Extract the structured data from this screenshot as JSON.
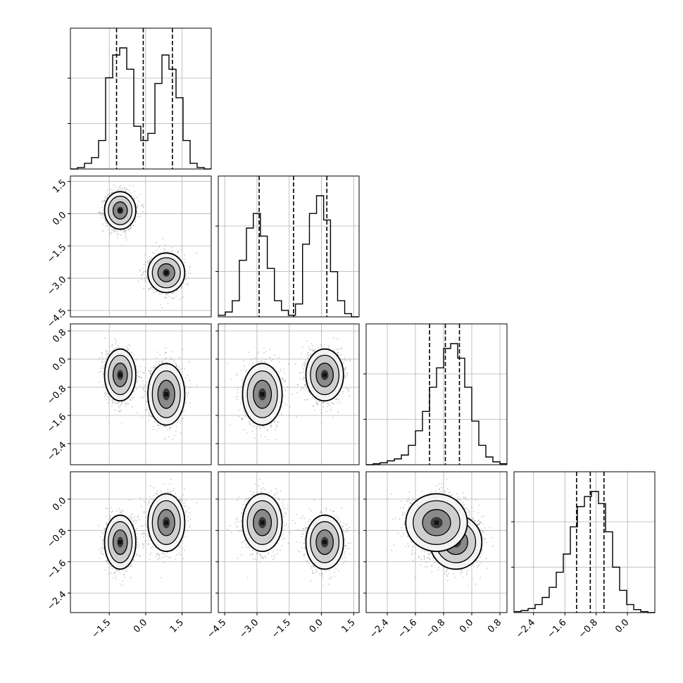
{
  "chart_data": {
    "type": "corner",
    "parameters": 4,
    "grid": true,
    "axes": [
      {
        "name": "",
        "range": [
          -3.1,
          2.7
        ],
        "ticks": [
          -1.5,
          0.0,
          1.5
        ],
        "tick_labels": [
          "−1.5",
          "0.0",
          "1.5"
        ]
      },
      {
        "name": "",
        "range": [
          -4.8,
          1.75
        ],
        "ticks": [
          -4.5,
          -3.0,
          -1.5,
          0.0,
          1.5
        ],
        "tick_labels": [
          "−4.5",
          "−3.0",
          "−1.5",
          "0.0",
          "1.5"
        ]
      },
      {
        "name": "",
        "range": [
          -3.0,
          1.0
        ],
        "ticks": [
          -2.4,
          -1.6,
          -0.8,
          0.0,
          0.8
        ],
        "tick_labels": [
          "−2.4",
          "−1.6",
          "−0.8",
          "0.0",
          "0.8"
        ]
      },
      {
        "name": "",
        "range": [
          -2.9,
          0.7
        ],
        "ticks": [
          -2.4,
          -1.6,
          -0.8,
          0.0
        ],
        "tick_labels": [
          "−2.4",
          "−1.6",
          "−0.8",
          "0.0"
        ]
      }
    ],
    "histograms": [
      {
        "parameter": 0,
        "quantiles": [
          -1.2,
          -0.1,
          1.1
        ],
        "bin_edges": [
          -3.1,
          -2.81,
          -2.52,
          -2.23,
          -1.94,
          -1.65,
          -1.36,
          -1.07,
          -0.78,
          -0.49,
          -0.2,
          0.09,
          0.38,
          0.67,
          0.96,
          1.25,
          1.54,
          1.83,
          2.12,
          2.41,
          2.7
        ],
        "counts": [
          0,
          1,
          4,
          8,
          20,
          64,
          80,
          85,
          70,
          30,
          20,
          25,
          60,
          80,
          70,
          50,
          20,
          4,
          1,
          0
        ]
      },
      {
        "parameter": 1,
        "quantiles": [
          -2.9,
          -1.3,
          0.25
        ],
        "bin_edges": [
          -4.8,
          -4.47,
          -4.15,
          -3.82,
          -3.49,
          -3.17,
          -2.84,
          -2.52,
          -2.19,
          -1.86,
          -1.54,
          -1.21,
          -0.88,
          -0.56,
          -0.23,
          0.1,
          0.42,
          0.75,
          1.08,
          1.4,
          1.73
        ],
        "counts": [
          1,
          3,
          10,
          35,
          55,
          64,
          50,
          30,
          10,
          4,
          1,
          8,
          45,
          64,
          75,
          60,
          28,
          10,
          2,
          0
        ]
      },
      {
        "parameter": 2,
        "quantiles": [
          -1.2,
          -0.75,
          -0.35
        ],
        "bin_edges": [
          -3.0,
          -2.8,
          -2.6,
          -2.4,
          -2.2,
          -2.0,
          -1.8,
          -1.6,
          -1.4,
          -1.2,
          -1.0,
          -0.8,
          -0.6,
          -0.4,
          -0.2,
          0.0,
          0.2,
          0.4,
          0.6,
          0.8,
          1.0
        ],
        "counts": [
          0,
          1,
          2,
          4,
          6,
          10,
          20,
          35,
          55,
          80,
          100,
          120,
          125,
          110,
          80,
          45,
          20,
          8,
          3,
          1
        ]
      },
      {
        "parameter": 3,
        "quantiles": [
          -1.3,
          -0.95,
          -0.6
        ],
        "bin_edges": [
          -2.9,
          -2.72,
          -2.54,
          -2.36,
          -2.18,
          -2.0,
          -1.82,
          -1.64,
          -1.46,
          -1.28,
          -1.1,
          -0.92,
          -0.74,
          -0.56,
          -0.38,
          -0.2,
          -0.02,
          0.16,
          0.34,
          0.52,
          0.7
        ],
        "counts": [
          1,
          2,
          4,
          8,
          15,
          25,
          40,
          58,
          85,
          105,
          115,
          120,
          108,
          80,
          45,
          22,
          8,
          3,
          1,
          0
        ]
      }
    ],
    "joint_modes": [
      {
        "weight": 0.5,
        "mean": [
          -1.05,
          0.15,
          -0.45,
          -1.1
        ],
        "sd": [
          0.28,
          0.38,
          0.32,
          0.3
        ]
      },
      {
        "weight": 0.5,
        "mean": [
          0.85,
          -2.75,
          -1.0,
          -0.6
        ],
        "sd": [
          0.33,
          0.4,
          0.38,
          0.32
        ]
      }
    ],
    "contour_levels": [
      "39.3%",
      "86.5%",
      "98.9%"
    ]
  },
  "colors": {
    "line": "#000000",
    "grid": "#b0b0b0",
    "scatter": "#9a9a9a",
    "density_light": "#d8d8d8",
    "density_dark": "#111111"
  }
}
